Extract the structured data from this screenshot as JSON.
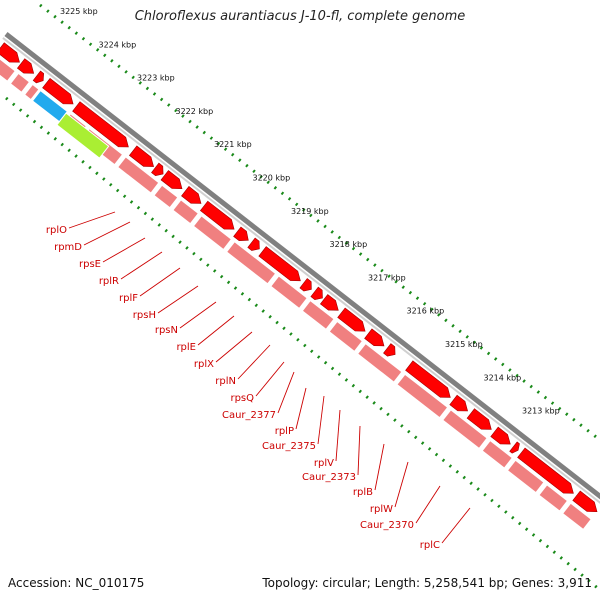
{
  "title": "Chloroflexus aurantiacus J-10-fl, complete genome",
  "footer": {
    "accession": "Accession: NC_010175",
    "topology": "Topology: circular; Length: 5,258,541 bp; Genes: 3,911"
  },
  "scale_labels": [
    "3225 kbp",
    "3224 kbp",
    "3223 kbp",
    "3222 kbp",
    "3221 kbp",
    "3220 kbp",
    "3219 kbp",
    "3218 kbp",
    "3217 kbp",
    "3216 kbp",
    "3215 kbp",
    "3214 kbp",
    "3213 kbp"
  ],
  "gene_labels": [
    "rplO",
    "rpmD",
    "rpsE",
    "rplR",
    "rplF",
    "rpsH",
    "rpsN",
    "rplE",
    "rplX",
    "rplN",
    "rpsQ",
    "Caur_2377",
    "rplP",
    "Caur_2375",
    "rplV",
    "Caur_2373",
    "rplB",
    "rplW",
    "Caur_2370",
    "rplC"
  ],
  "colors": {
    "cds_red": "#ff0000",
    "cds_pink": "#f08080",
    "backbone": "#808080",
    "scale_dots": "#1a8a1a",
    "highlight_blue": "#22aaee",
    "highlight_green": "#aaee33",
    "label_red": "#cc0000"
  }
}
